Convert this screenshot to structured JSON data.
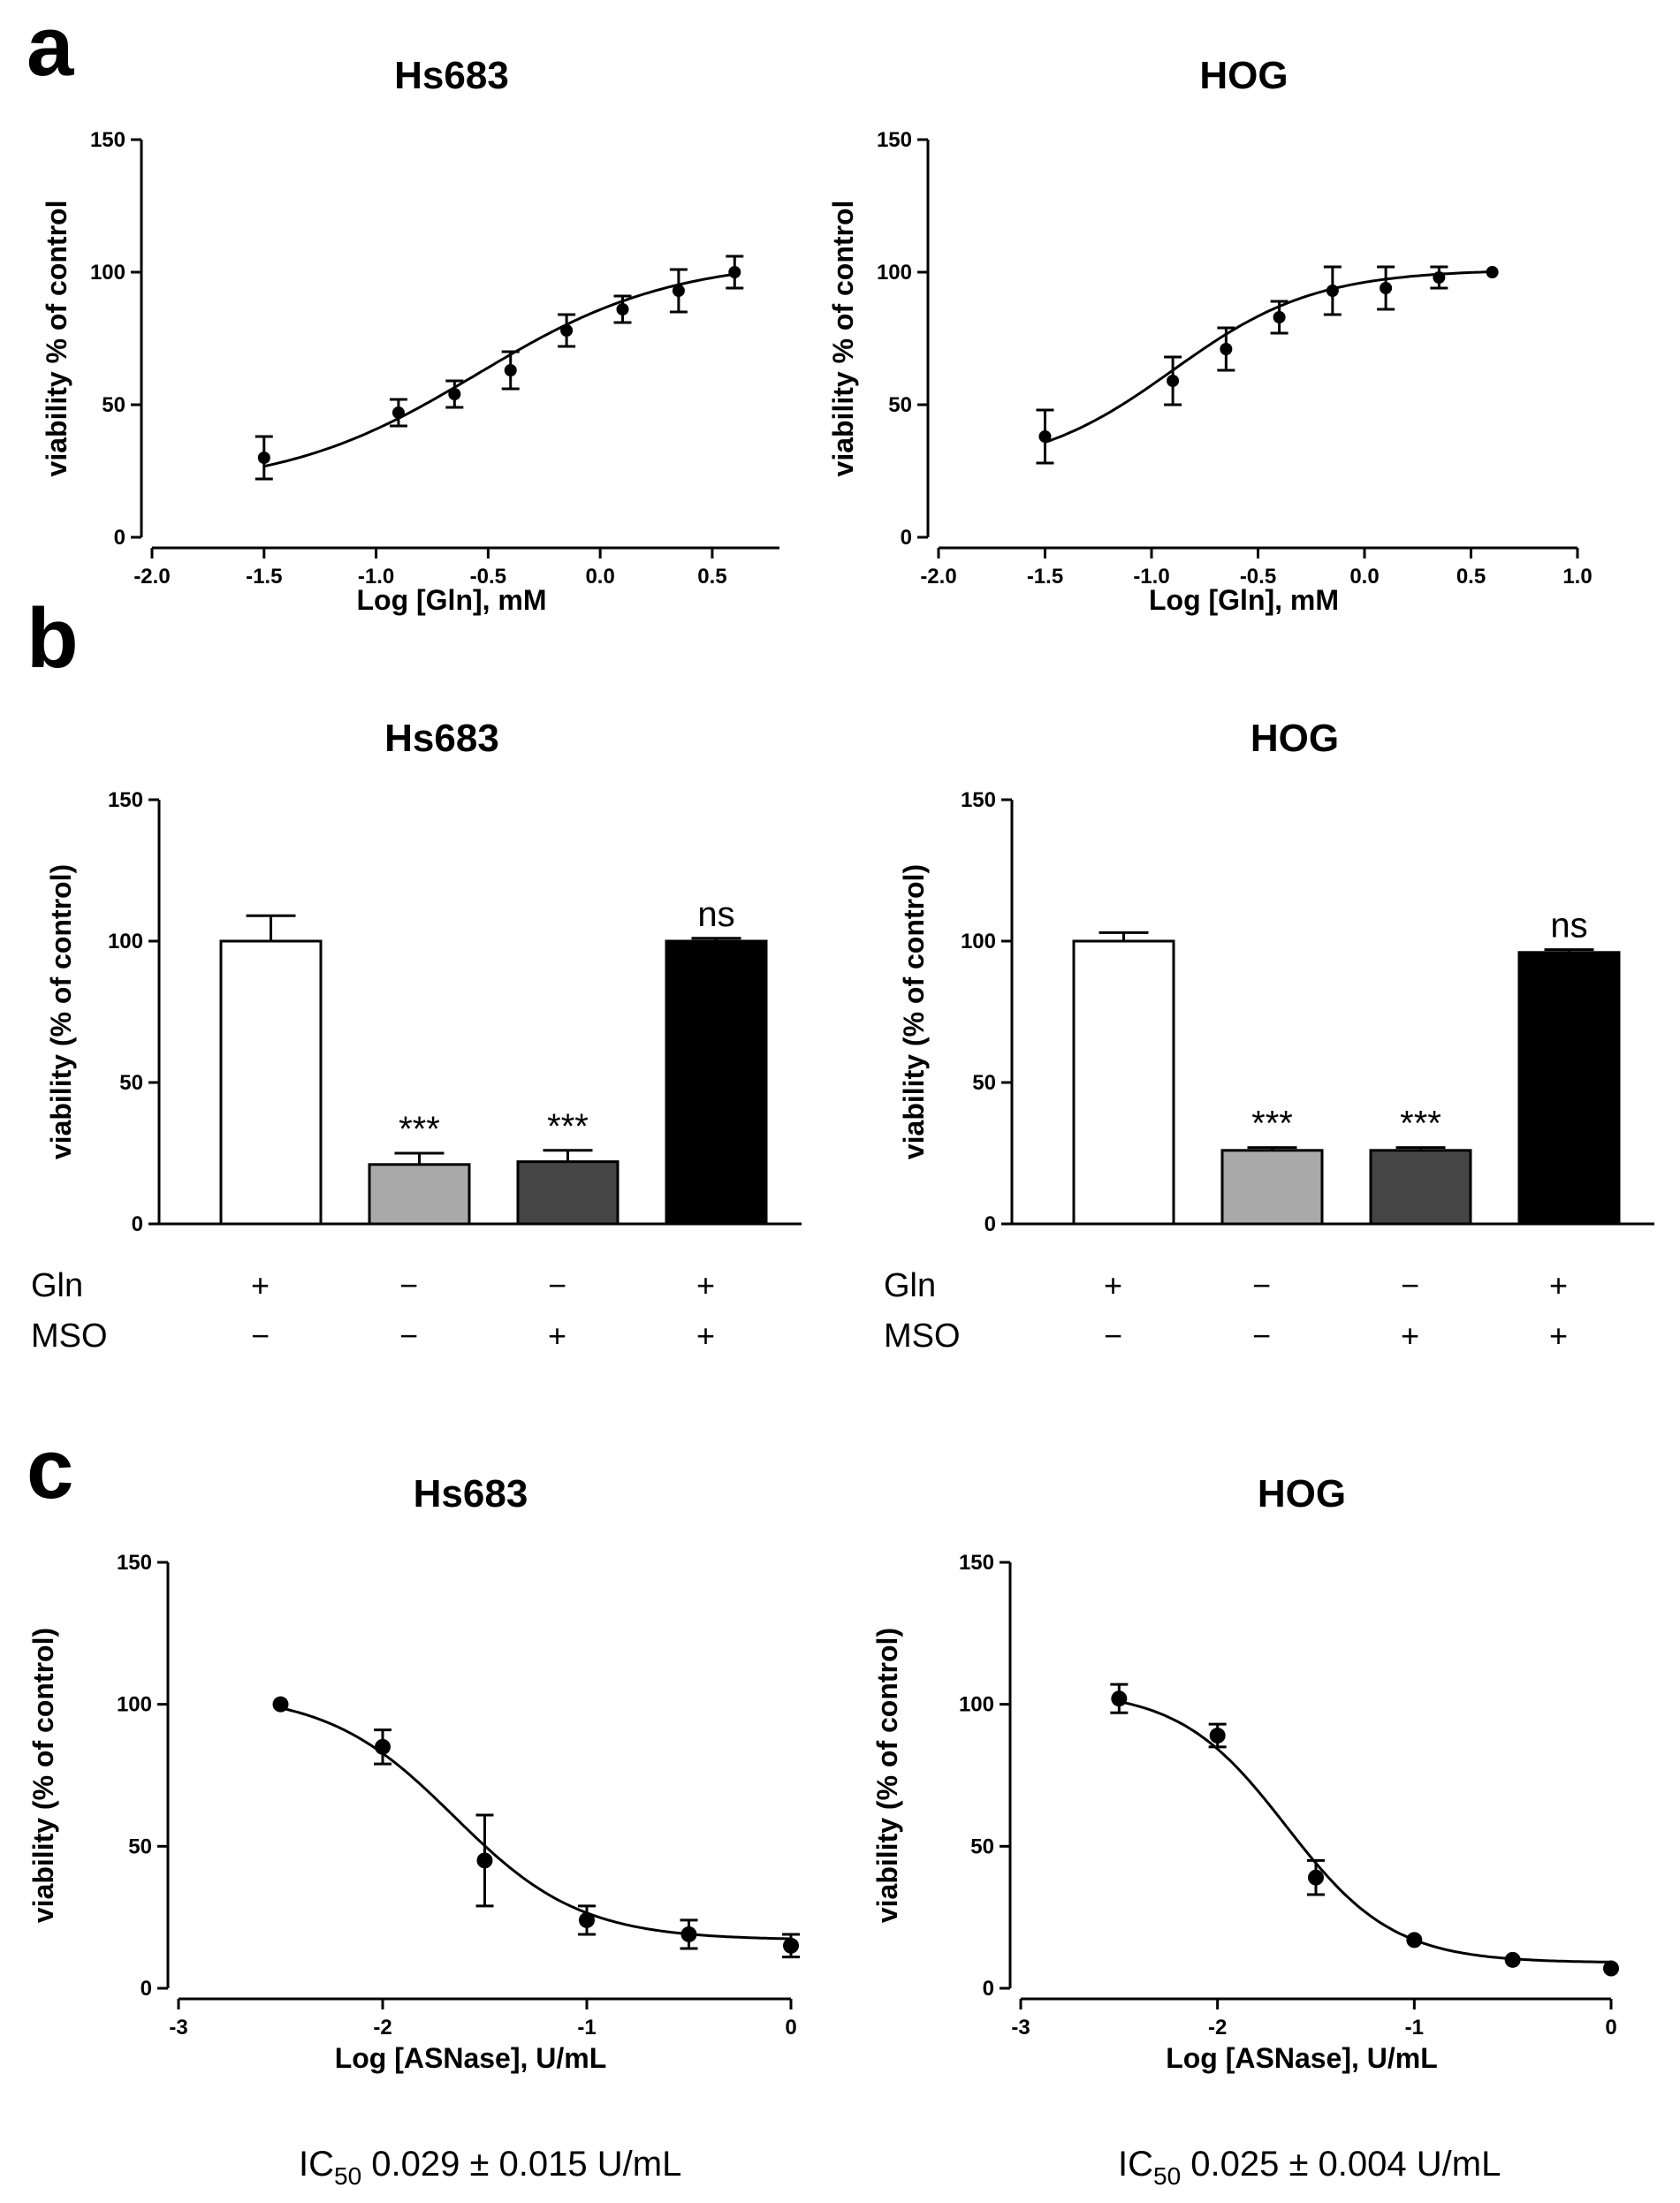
{
  "panels": {
    "a": "a",
    "b": "b",
    "c": "c"
  },
  "chart_data": [
    {
      "id": "a1",
      "panel": "a",
      "type": "line",
      "title": "Hs683",
      "xlabel": "Log [Gln], mM",
      "ylabel": "viability % of control",
      "xlim": [
        -2.0,
        0.8
      ],
      "ylim": [
        0,
        150
      ],
      "xticks": [
        -2.0,
        -1.5,
        -1.0,
        -0.5,
        0.0,
        0.5
      ],
      "xtick_labels": [
        "-2.0",
        "-1.5",
        "-1.0",
        "-0.5",
        "0.0",
        "0.5"
      ],
      "yticks": [
        0,
        50,
        100,
        150
      ],
      "ytick_labels": [
        "0",
        "50",
        "100",
        "150"
      ],
      "x": [
        -1.5,
        -0.9,
        -0.65,
        -0.4,
        -0.15,
        0.1,
        0.35,
        0.6
      ],
      "y": [
        30,
        47,
        54,
        63,
        78,
        86,
        93,
        100
      ],
      "err": [
        8,
        5,
        5,
        7,
        6,
        5,
        8,
        6
      ],
      "fit": {
        "model": "sigmoid",
        "bottom": 18,
        "top": 105,
        "logEC50": -0.55,
        "hill": 1.0
      },
      "grid": false
    },
    {
      "id": "a2",
      "panel": "a",
      "type": "line",
      "title": "HOG",
      "xlabel": "Log [Gln], mM",
      "ylabel": "viability % of control",
      "xlim": [
        -2.0,
        1.0
      ],
      "ylim": [
        0,
        150
      ],
      "xticks": [
        -2.0,
        -1.5,
        -1.0,
        -0.5,
        0.0,
        0.5,
        1.0
      ],
      "xtick_labels": [
        "-2.0",
        "-1.5",
        "-1.0",
        "-0.5",
        "0.0",
        "0.5",
        "1.0"
      ],
      "yticks": [
        0,
        50,
        100,
        150
      ],
      "ytick_labels": [
        "0",
        "50",
        "100",
        "150"
      ],
      "x": [
        -1.5,
        -0.9,
        -0.65,
        -0.4,
        -0.15,
        0.1,
        0.35,
        0.6
      ],
      "y": [
        38,
        59,
        71,
        83,
        93,
        94,
        98,
        100
      ],
      "err": [
        10,
        9,
        8,
        6,
        9,
        8,
        4,
        0
      ],
      "fit": {
        "model": "sigmoid",
        "bottom": 25,
        "top": 101,
        "logEC50": -0.9,
        "hill": 1.3
      },
      "grid": false
    },
    {
      "id": "b1",
      "panel": "b",
      "type": "bar",
      "title": "Hs683",
      "xlabel": "",
      "ylabel": "viability (% of control)",
      "ylim": [
        0,
        150
      ],
      "yticks": [
        0,
        50,
        100,
        150
      ],
      "ytick_labels": [
        "0",
        "50",
        "100",
        "150"
      ],
      "categories": [
        "Gln+ MSO−",
        "Gln− MSO−",
        "Gln− MSO+",
        "Gln+ MSO+"
      ],
      "values": [
        100,
        21,
        22,
        100
      ],
      "err": [
        9,
        4,
        4,
        1
      ],
      "colors": [
        "#ffffff",
        "#a9a9a9",
        "#454545",
        "#000000"
      ],
      "annotations": [
        "",
        "***",
        "***",
        "ns"
      ],
      "row_labels": [
        "Gln",
        "MSO"
      ],
      "signs": [
        [
          "+",
          "−",
          "−",
          "+"
        ],
        [
          "−",
          "−",
          "+",
          "+"
        ]
      ],
      "grid": false
    },
    {
      "id": "b2",
      "panel": "b",
      "type": "bar",
      "title": "HOG",
      "xlabel": "",
      "ylabel": "viability (% of control)",
      "ylim": [
        0,
        150
      ],
      "yticks": [
        0,
        50,
        100,
        150
      ],
      "ytick_labels": [
        "0",
        "50",
        "100",
        "150"
      ],
      "categories": [
        "Gln+ MSO−",
        "Gln− MSO−",
        "Gln− MSO+",
        "Gln+ MSO+"
      ],
      "values": [
        100,
        26,
        26,
        96
      ],
      "err": [
        3,
        1,
        1,
        1
      ],
      "colors": [
        "#ffffff",
        "#a9a9a9",
        "#454545",
        "#000000"
      ],
      "annotations": [
        "",
        "***",
        "***",
        "ns"
      ],
      "row_labels": [
        "Gln",
        "MSO"
      ],
      "signs": [
        [
          "+",
          "−",
          "−",
          "+"
        ],
        [
          "−",
          "−",
          "+",
          "+"
        ]
      ],
      "grid": false
    },
    {
      "id": "c1",
      "panel": "c",
      "type": "line",
      "title": "Hs683",
      "xlabel": "Log [ASNase], U/mL",
      "ylabel": "viability (% of control)",
      "xlim": [
        -3,
        0
      ],
      "ylim": [
        0,
        150
      ],
      "xticks": [
        -3,
        -2,
        -1,
        0
      ],
      "xtick_labels": [
        "-3",
        "-2",
        "-1",
        "0"
      ],
      "yticks": [
        0,
        50,
        100,
        150
      ],
      "ytick_labels": [
        "0",
        "50",
        "100",
        "150"
      ],
      "x": [
        -2.5,
        -2.0,
        -1.5,
        -1.0,
        -0.5,
        0.0
      ],
      "y": [
        100,
        85,
        45,
        24,
        19,
        15
      ],
      "err": [
        0,
        6,
        16,
        5,
        5,
        4
      ],
      "fit": {
        "model": "sigmoid",
        "bottom": 17,
        "top": 104,
        "logEC50": -1.65,
        "hill": -1.4
      },
      "ic50": {
        "prefix": "IC",
        "sub": "50",
        "text": " 0.029 ± 0.015 U/mL"
      },
      "grid": false
    },
    {
      "id": "c2",
      "panel": "c",
      "type": "line",
      "title": "HOG",
      "xlabel": "Log [ASNase], U/mL",
      "ylabel": "viability (% of control)",
      "xlim": [
        -3,
        0
      ],
      "ylim": [
        0,
        150
      ],
      "xticks": [
        -3,
        -2,
        -1,
        0
      ],
      "xtick_labels": [
        "-3",
        "-2",
        "-1",
        "0"
      ],
      "yticks": [
        0,
        50,
        100,
        150
      ],
      "ytick_labels": [
        "0",
        "50",
        "100",
        "150"
      ],
      "x": [
        -2.5,
        -2.0,
        -1.5,
        -1.0,
        -0.5,
        0.0
      ],
      "y": [
        102,
        89,
        39,
        17,
        10,
        7
      ],
      "err": [
        5,
        4,
        6,
        0,
        0,
        0
      ],
      "fit": {
        "model": "sigmoid",
        "bottom": 9,
        "top": 105,
        "logEC50": -1.65,
        "hill": -1.6
      },
      "ic50": {
        "prefix": "IC",
        "sub": "50",
        "text": " 0.025 ± 0.004 U/mL"
      },
      "grid": false
    }
  ]
}
